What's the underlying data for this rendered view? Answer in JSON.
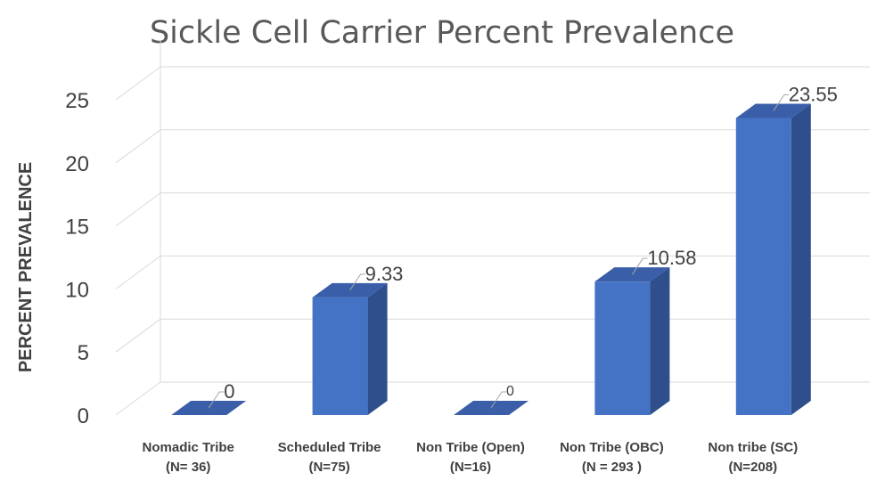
{
  "chart_data": {
    "type": "bar",
    "title": "Sickle Cell Carrier Percent Prevalence",
    "xlabel": "",
    "ylabel": "PERCENT PREVALENCE",
    "ylim": [
      0,
      25
    ],
    "yticks": [
      "0",
      "5",
      "10",
      "15",
      "20",
      "25"
    ],
    "categories": [
      [
        "Nomadic Tribe",
        "(N= 36)"
      ],
      [
        "Scheduled Tribe",
        "(N=75)"
      ],
      [
        "Non Tribe (Open)",
        "(N=16)"
      ],
      [
        "Non Tribe (OBC)",
        "(N = 293 )"
      ],
      [
        "Non tribe (SC)",
        "(N=208)"
      ]
    ],
    "values": [
      0,
      9.33,
      0,
      10.58,
      23.55
    ],
    "data_labels": [
      "0",
      "9.33",
      "0",
      "10.58",
      "23.55"
    ],
    "style": "3d-column",
    "grid": true,
    "colors": {
      "bar_front": "#4472c4",
      "bar_side": "#2f4f8c",
      "bar_top": "#3a5fa8",
      "grid": "#d9d9d9",
      "text": "#404040",
      "title": "#595959"
    }
  }
}
